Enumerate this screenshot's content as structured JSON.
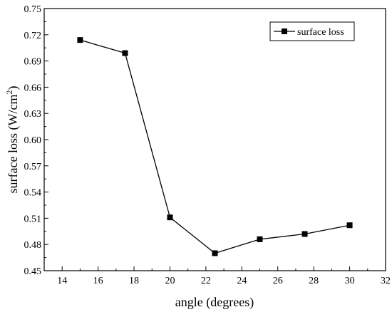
{
  "chart_data": {
    "type": "line",
    "title": "",
    "xlabel": "angle (degrees)",
    "ylabel": {
      "main": "surface loss (W/cm",
      "sup": "2",
      "close": ")"
    },
    "xlim": [
      13,
      32
    ],
    "ylim": [
      0.45,
      0.75
    ],
    "xticks": [
      14,
      16,
      18,
      20,
      22,
      24,
      26,
      28,
      30,
      32
    ],
    "xtick_labels": [
      "14",
      "16",
      "18",
      "20",
      "22",
      "24",
      "26",
      "28",
      "30",
      "32"
    ],
    "yticks": [
      0.45,
      0.48,
      0.51,
      0.54,
      0.57,
      0.6,
      0.63,
      0.66,
      0.69,
      0.72,
      0.75
    ],
    "ytick_labels": [
      "0.45",
      "0.48",
      "0.51",
      "0.54",
      "0.57",
      "0.60",
      "0.63",
      "0.66",
      "0.69",
      "0.72",
      "0.75"
    ],
    "grid": false,
    "legend_position": "top-right",
    "series": [
      {
        "name": "surface loss",
        "marker": "square",
        "color": "#000000",
        "x": [
          15,
          17.5,
          20,
          22.5,
          25,
          27.5,
          30
        ],
        "y": [
          0.714,
          0.699,
          0.511,
          0.47,
          0.486,
          0.492,
          0.502
        ]
      }
    ]
  }
}
